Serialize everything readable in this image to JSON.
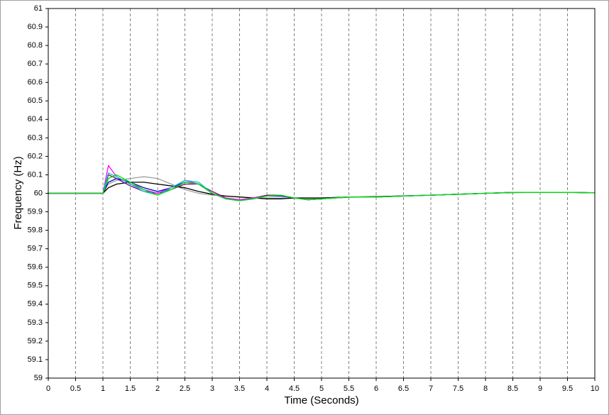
{
  "chart_data": {
    "type": "line",
    "xlabel": "Time (Seconds)",
    "ylabel": "Frequency (Hz)",
    "x": [
      0,
      1,
      1.1,
      1.25,
      1.5,
      1.75,
      2,
      2.25,
      2.5,
      2.75,
      3,
      3.25,
      3.5,
      3.75,
      4,
      4.25,
      4.5,
      4.75,
      5,
      5.5,
      6,
      6.5,
      7,
      7.5,
      8,
      8.5,
      9,
      9.5,
      10
    ],
    "series": [
      {
        "color": "#a0a0a0",
        "values": [
          60,
          60,
          60.05,
          60.07,
          60.08,
          60.09,
          60.08,
          60.05,
          60.02,
          60.0,
          59.99,
          59.985,
          59.98,
          59.975,
          59.975,
          59.975,
          59.972,
          59.97,
          59.972,
          59.978,
          59.982,
          59.986,
          59.99,
          59.995,
          60.0,
          60.004,
          60.005,
          60.005,
          60.003
        ]
      },
      {
        "color": "#000000",
        "values": [
          60,
          60,
          60.03,
          60.05,
          60.06,
          60.06,
          60.05,
          60.04,
          60.03,
          60.01,
          59.995,
          59.985,
          59.98,
          59.975,
          59.97,
          59.97,
          59.975,
          59.975,
          59.975,
          59.98,
          59.982,
          59.986,
          59.99,
          59.995,
          60.0,
          60.004,
          60.005,
          60.005,
          60.003
        ]
      },
      {
        "color": "#0000c8",
        "values": [
          60,
          60,
          60.06,
          60.08,
          60.06,
          60.03,
          60.01,
          60.03,
          60.06,
          60.05,
          60.0,
          59.97,
          59.965,
          59.975,
          59.985,
          59.985,
          59.975,
          59.965,
          59.97,
          59.98,
          59.98,
          59.985,
          59.99,
          59.995,
          60.0,
          60.005,
          60.005,
          60.005,
          60.003
        ]
      },
      {
        "color": "#800080",
        "values": [
          60,
          60,
          60.1,
          60.08,
          60.04,
          60.01,
          60.0,
          60.02,
          60.05,
          60.05,
          60.01,
          59.975,
          59.965,
          59.975,
          59.99,
          59.99,
          59.975,
          59.965,
          59.97,
          59.98,
          59.98,
          59.985,
          59.99,
          59.995,
          60.0,
          60.005,
          60.005,
          60.005,
          60.003
        ]
      },
      {
        "color": "#ff00ff",
        "values": [
          60,
          60,
          60.15,
          60.09,
          60.05,
          60.02,
          60.0,
          60.03,
          60.07,
          60.05,
          60.0,
          59.975,
          59.965,
          59.975,
          59.985,
          59.99,
          59.975,
          59.965,
          59.97,
          59.98,
          59.98,
          59.985,
          59.99,
          59.995,
          60.0,
          60.005,
          60.005,
          60.005,
          60.003
        ]
      },
      {
        "color": "#00c8c8",
        "values": [
          60,
          60,
          60.11,
          60.09,
          60.05,
          60.01,
          59.99,
          60.03,
          60.07,
          60.06,
          60.0,
          59.97,
          59.96,
          59.97,
          59.985,
          59.99,
          59.975,
          59.965,
          59.97,
          59.98,
          59.98,
          59.985,
          59.99,
          59.995,
          60.0,
          60.005,
          60.005,
          60.005,
          60.003
        ]
      },
      {
        "color": "#00e000",
        "values": [
          60,
          60,
          60.08,
          60.1,
          60.06,
          60.02,
          59.99,
          60.02,
          60.06,
          60.05,
          60.0,
          59.97,
          59.96,
          59.97,
          59.985,
          59.99,
          59.975,
          59.965,
          59.97,
          59.98,
          59.98,
          59.985,
          59.99,
          59.995,
          60.0,
          60.005,
          60.005,
          60.005,
          60.003
        ]
      }
    ],
    "xlim": [
      0,
      10
    ],
    "xticks": [
      0,
      0.5,
      1,
      1.5,
      2,
      2.5,
      3,
      3.5,
      4,
      4.5,
      5,
      5.5,
      6,
      6.5,
      7,
      7.5,
      8,
      8.5,
      9,
      9.5,
      10
    ],
    "ylim": [
      59,
      61
    ],
    "yticks": [
      59,
      59.1,
      59.2,
      59.3,
      59.4,
      59.5,
      59.6,
      59.7,
      59.8,
      59.9,
      60,
      60.1,
      60.2,
      60.3,
      60.4,
      60.5,
      60.6,
      60.7,
      60.8,
      60.9,
      61
    ],
    "grid": true
  }
}
